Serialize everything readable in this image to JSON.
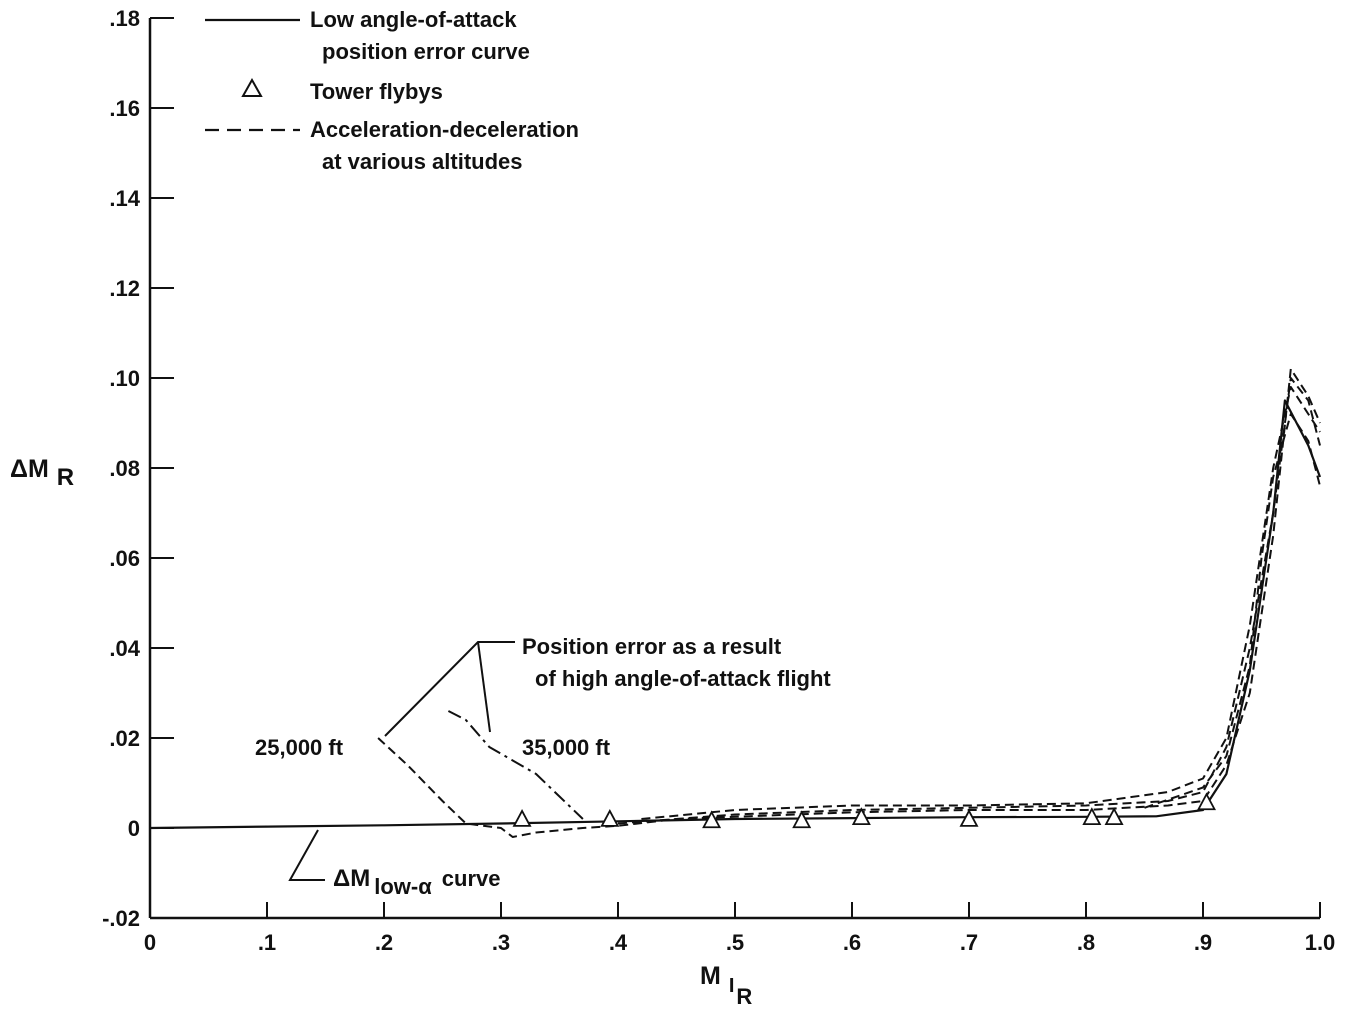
{
  "chart_data": {
    "type": "line",
    "xlabel": "M",
    "xlabel_sub": "I",
    "xlabel_subsub": "R",
    "ylabel": "ΔM",
    "ylabel_sub": "R",
    "xlim": [
      0,
      1.0
    ],
    "ylim": [
      -0.02,
      0.18
    ],
    "x_ticks": [
      0,
      0.1,
      0.2,
      0.3,
      0.4,
      0.5,
      0.6,
      0.7,
      0.8,
      0.9,
      1.0
    ],
    "x_tick_labels": [
      "0",
      ".1",
      ".2",
      ".3",
      ".4",
      ".5",
      ".6",
      ".7",
      ".8",
      ".9",
      "1.0"
    ],
    "y_ticks": [
      -0.02,
      0,
      0.02,
      0.04,
      0.06,
      0.08,
      0.1,
      0.12,
      0.14,
      0.16,
      0.18
    ],
    "y_tick_labels": [
      "-.02",
      "0",
      ".02",
      ".04",
      ".06",
      ".08",
      ".10",
      ".12",
      ".14",
      ".16",
      ".18"
    ],
    "legend": {
      "placement": "top-left",
      "entries": [
        {
          "style": "solid",
          "lines": [
            "Low angle-of-attack",
            "position error curve"
          ]
        },
        {
          "style": "triangle",
          "lines": [
            "Tower flybys"
          ]
        },
        {
          "style": "dashed",
          "lines": [
            "Acceleration-deceleration",
            "at various altitudes"
          ]
        }
      ]
    },
    "annotations": {
      "high_alpha": [
        "Position error as a result",
        "of high angle-of-attack flight"
      ],
      "alt_25000": "25,000 ft",
      "alt_35000": "35,000 ft",
      "low_alpha_prefix": "ΔM",
      "low_alpha_sub": "low-α",
      "low_alpha_suffix": "curve"
    },
    "series": [
      {
        "style": "solid",
        "x": [
          0,
          0.1,
          0.2,
          0.3,
          0.4,
          0.5,
          0.6,
          0.7,
          0.8,
          0.86,
          0.9,
          0.92,
          0.94,
          0.96,
          0.97,
          0.99,
          1.0
        ],
        "y": [
          0,
          0.0003,
          0.0006,
          0.001,
          0.0015,
          0.002,
          0.0022,
          0.0024,
          0.0025,
          0.0026,
          0.004,
          0.012,
          0.035,
          0.07,
          0.095,
          0.085,
          0.078
        ]
      },
      {
        "style": "triangle",
        "x": [
          0.318,
          0.393,
          0.48,
          0.557,
          0.608,
          0.7,
          0.805,
          0.824,
          0.903
        ],
        "y": [
          0.0018,
          0.0018,
          0.0015,
          0.0015,
          0.0022,
          0.0018,
          0.0022,
          0.0022,
          0.0055
        ]
      },
      {
        "style": "dashed",
        "x": [
          0.195,
          0.22,
          0.25,
          0.27,
          0.3,
          0.31,
          0.33,
          0.37,
          0.4,
          0.45,
          0.5,
          0.6,
          0.7,
          0.8,
          0.87,
          0.9,
          0.92,
          0.94,
          0.96,
          0.975,
          0.99,
          1.0
        ],
        "y": [
          0.02,
          0.014,
          0.006,
          0.001,
          0.0,
          -0.002,
          -0.001,
          0.0,
          0.0005,
          0.002,
          0.003,
          0.004,
          0.0045,
          0.005,
          0.006,
          0.008,
          0.018,
          0.04,
          0.07,
          0.1,
          0.095,
          0.085
        ]
      },
      {
        "style": "dash-dot",
        "x": [
          0.255,
          0.27,
          0.29,
          0.31,
          0.33,
          0.35,
          0.37
        ],
        "y": [
          0.026,
          0.024,
          0.018,
          0.015,
          0.012,
          0.007,
          0.002
        ]
      },
      {
        "style": "dashed",
        "x": [
          0.4,
          0.45,
          0.5,
          0.6,
          0.7,
          0.8,
          0.87,
          0.9,
          0.92,
          0.94,
          0.96,
          0.975,
          0.99,
          1.0
        ],
        "y": [
          0.001,
          0.002,
          0.0025,
          0.0035,
          0.004,
          0.004,
          0.005,
          0.006,
          0.014,
          0.03,
          0.065,
          0.102,
          0.096,
          0.09
        ]
      },
      {
        "style": "dashed",
        "x": [
          0.42,
          0.5,
          0.6,
          0.7,
          0.8,
          0.87,
          0.9,
          0.92,
          0.94,
          0.96,
          0.975,
          0.99,
          1.0
        ],
        "y": [
          0.002,
          0.004,
          0.005,
          0.005,
          0.0055,
          0.008,
          0.011,
          0.02,
          0.045,
          0.08,
          0.098,
          0.092,
          0.088
        ]
      },
      {
        "style": "dashed",
        "x": [
          0.85,
          0.9,
          0.92,
          0.94,
          0.95,
          0.96,
          0.975,
          0.99,
          1.0
        ],
        "y": [
          0.0045,
          0.009,
          0.016,
          0.036,
          0.06,
          0.078,
          0.092,
          0.086,
          0.076
        ]
      }
    ]
  }
}
